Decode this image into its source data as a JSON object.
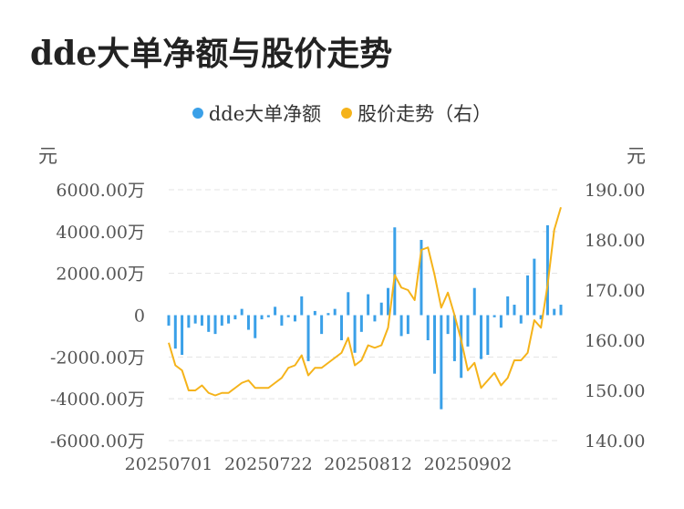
{
  "title": "dde大单净额与股价走势",
  "colors": {
    "bar": "#3aa0e8",
    "line": "#f5b31a",
    "grid": "#e3e3e3",
    "text": "#555555",
    "title": "#222222"
  },
  "chart_data": {
    "type": "bar+line",
    "legend": [
      {
        "name": "dde大单净额",
        "color": "#3aa0e8",
        "marker": "circle"
      },
      {
        "name": "股价走势（右）",
        "color": "#f5b31a",
        "marker": "circle"
      }
    ],
    "left_axis": {
      "unit": "元",
      "min": -6000,
      "max": 6000,
      "ticks": [
        6000,
        4000,
        2000,
        0,
        -2000,
        -4000,
        -6000
      ],
      "tick_labels": [
        "6000.00万",
        "4000.00万",
        "2000.00万",
        "0",
        "-2000.00万",
        "-4000.00万",
        "-6000.00万"
      ]
    },
    "right_axis": {
      "unit": "元",
      "min": 140,
      "max": 190,
      "ticks": [
        190,
        180,
        170,
        160,
        150,
        140
      ],
      "tick_labels": [
        "190.00",
        "180.00",
        "170.00",
        "160.00",
        "150.00",
        "140.00"
      ]
    },
    "x_tick_labels": [
      {
        "index": 0,
        "label": "20250701"
      },
      {
        "index": 15,
        "label": "20250722"
      },
      {
        "index": 30,
        "label": "20250812"
      },
      {
        "index": 45,
        "label": "20250902"
      }
    ],
    "series": [
      {
        "name": "dde大单净额",
        "type": "bar",
        "unit": "万元",
        "values": [
          -500,
          -1600,
          -1900,
          -600,
          -400,
          -500,
          -800,
          -900,
          -500,
          -400,
          -200,
          300,
          -700,
          -1100,
          -200,
          -100,
          400,
          -500,
          -100,
          -300,
          900,
          -2200,
          200,
          -900,
          100,
          300,
          -1200,
          1100,
          -1800,
          -800,
          1000,
          -300,
          600,
          1300,
          4200,
          -1000,
          -900,
          0,
          3600,
          -1200,
          -2800,
          -4500,
          -900,
          -2200,
          -3000,
          -1500,
          1300,
          -2100,
          -1900,
          -100,
          -600,
          900,
          500,
          -400,
          1900,
          2700,
          -200,
          4300,
          300,
          500
        ]
      },
      {
        "name": "股价走势",
        "type": "line",
        "unit": "元",
        "values": [
          159.5,
          155,
          154,
          150,
          150,
          151,
          149.5,
          149,
          149.5,
          149.5,
          150.5,
          151.5,
          152,
          150.5,
          150.5,
          150.5,
          151.5,
          152.5,
          154.5,
          155,
          157,
          153,
          154.5,
          154.5,
          155.5,
          156.5,
          157.5,
          160.5,
          155,
          156,
          159,
          158.5,
          159,
          162.5,
          173,
          170.5,
          170,
          168,
          178,
          178.5,
          173,
          166.5,
          169.5,
          165,
          160,
          154,
          155.5,
          150.5,
          152,
          153.5,
          151,
          152.5,
          156,
          156,
          157.5,
          164,
          162.5,
          171,
          182,
          186.5
        ]
      }
    ]
  }
}
